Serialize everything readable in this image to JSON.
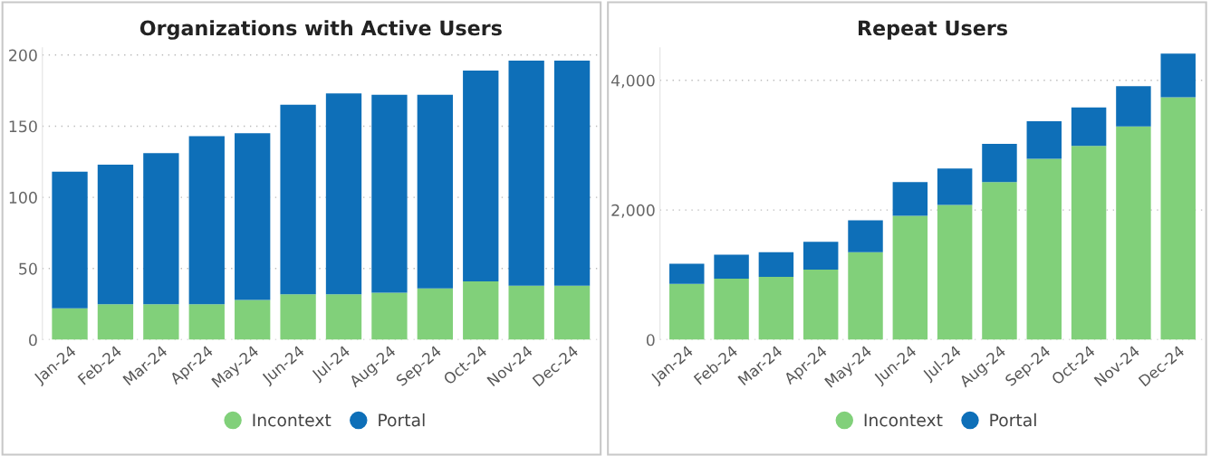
{
  "chart_data": [
    {
      "type": "bar",
      "title": "Organizations with Active Users",
      "stacked": true,
      "categories": [
        "Jan-24",
        "Feb-24",
        "Mar-24",
        "Apr-24",
        "May-24",
        "Jun-24",
        "Jul-24",
        "Aug-24",
        "Sep-24",
        "Oct-24",
        "Nov-24",
        "Dec-24"
      ],
      "ylim": [
        0,
        205
      ],
      "series": [
        {
          "name": "Incontext",
          "color": "#81d07a",
          "values": [
            22,
            25,
            25,
            25,
            28,
            32,
            32,
            33,
            36,
            41,
            38,
            38
          ]
        },
        {
          "name": "Portal",
          "color": "#0e6fb8",
          "values": [
            96,
            98,
            106,
            118,
            117,
            133,
            141,
            139,
            136,
            148,
            158,
            158
          ]
        }
      ],
      "yticks": [
        0,
        50,
        100,
        150,
        200
      ],
      "grid": "y",
      "legend": "bottom"
    },
    {
      "type": "bar",
      "title": "Repeat Users",
      "stacked": true,
      "categories": [
        "Jan-24",
        "Feb-24",
        "Mar-24",
        "Apr-24",
        "May-24",
        "Jun-24",
        "Jul-24",
        "Aug-24",
        "Sep-24",
        "Oct-24",
        "Nov-24",
        "Dec-24"
      ],
      "ylim": [
        0,
        4500
      ],
      "series": [
        {
          "name": "Incontext",
          "color": "#81d07a",
          "values": [
            860,
            940,
            970,
            1080,
            1350,
            1910,
            2080,
            2430,
            2790,
            2990,
            3290,
            3740
          ]
        },
        {
          "name": "Portal",
          "color": "#0e6fb8",
          "values": [
            310,
            370,
            380,
            430,
            490,
            520,
            560,
            590,
            580,
            590,
            620,
            670
          ]
        }
      ],
      "yticks": [
        0,
        {
          "value": 2000,
          "label": "2,000"
        },
        {
          "value": 4000,
          "label": "4,000"
        }
      ],
      "grid": "y",
      "legend": "bottom"
    }
  ]
}
